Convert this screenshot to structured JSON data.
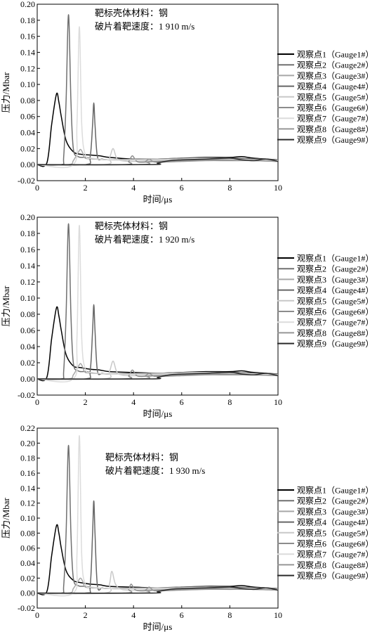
{
  "chart_data": [
    {
      "type": "line",
      "annotation": [
        "靶标壳体材料：钢",
        "破片着靶速度：1 910 m/s"
      ],
      "xlabel": "时间/μs",
      "ylabel": "压力/Mbar",
      "xlim": [
        0,
        10
      ],
      "ylim": [
        -0.02,
        0.2
      ],
      "xticks": [
        0,
        2,
        4,
        6,
        8,
        10
      ],
      "yticks": [
        -0.02,
        0.0,
        0.02,
        0.04,
        0.06,
        0.08,
        0.1,
        0.12,
        0.14,
        0.16,
        0.18,
        0.2
      ],
      "legend_position": "right",
      "series": [
        {
          "name": "观察点1（Gauge1#）",
          "color": "#000000",
          "x": [
            0,
            0.4,
            0.6,
            0.8,
            0.9,
            1.0,
            1.2,
            1.5,
            1.8,
            2.2,
            2.6,
            3,
            4,
            5,
            6,
            7,
            8,
            8.5,
            9,
            10
          ],
          "values": [
            0,
            0.002,
            0.05,
            0.088,
            0.078,
            0.06,
            0.03,
            0.016,
            0.013,
            0.012,
            0.011,
            0.009,
            0.007,
            0.007,
            0.008,
            0.009,
            0.009,
            0.01,
            0.008,
            0.006
          ]
        },
        {
          "name": "观察点2（Gauge2#）",
          "color": "#707070",
          "x": [
            0,
            1.0,
            1.1,
            1.2,
            1.3,
            1.4,
            1.5,
            1.7,
            2.0,
            2.5,
            3,
            4,
            5,
            6,
            7,
            8,
            9,
            10
          ],
          "values": [
            0,
            0,
            0.01,
            0.08,
            0.187,
            0.08,
            0.02,
            0.01,
            0.009,
            0.007,
            0.006,
            0.007,
            0.007,
            0.008,
            0.008,
            0.008,
            0.007,
            0.006
          ]
        },
        {
          "name": "观察点3（Gauge3#）",
          "color": "#a8a8a8",
          "x": [
            0,
            1.3,
            1.5,
            1.7,
            1.8,
            1.9,
            2.0,
            2.4,
            3,
            4,
            5,
            6,
            7,
            8,
            9,
            10
          ],
          "values": [
            0,
            0,
            0.005,
            0.015,
            0.019,
            0.014,
            0.008,
            0.007,
            0.006,
            0.006,
            0.007,
            0.007,
            0.008,
            0.008,
            0.007,
            0.006
          ]
        },
        {
          "name": "观察点4（Gauge4#）",
          "color": "#666666",
          "x": [
            0,
            2.0,
            2.2,
            2.3,
            2.35,
            2.4,
            2.5,
            2.7,
            3,
            4,
            5,
            6,
            7,
            8,
            9,
            10
          ],
          "values": [
            0,
            0,
            0.01,
            0.05,
            0.077,
            0.05,
            0.01,
            0.007,
            0.006,
            0.006,
            0.006,
            0.007,
            0.008,
            0.008,
            0.007,
            0.006
          ]
        },
        {
          "name": "观察点5（Gauge5#）",
          "color": "#c8c8c8",
          "x": [
            0,
            2.8,
            3.0,
            3.15,
            3.3,
            3.5,
            4,
            5,
            6,
            7,
            8,
            9,
            10
          ],
          "values": [
            0,
            0,
            0.008,
            0.02,
            0.008,
            0.005,
            0.004,
            0.005,
            0.006,
            0.007,
            0.007,
            0.006,
            0.005
          ]
        },
        {
          "name": "观察点6（Gauge6#）",
          "color": "#8c8c8c",
          "x": [
            0,
            3.6,
            3.8,
            3.95,
            4.1,
            4.3,
            5,
            6,
            7,
            8,
            9,
            10
          ],
          "values": [
            0,
            0,
            0.004,
            0.011,
            0.005,
            0.003,
            0.004,
            0.005,
            0.006,
            0.006,
            0.005,
            0.004
          ]
        },
        {
          "name": "观察点7（Gauge7#）",
          "color": "#dcdcdc",
          "x": [
            0,
            1.5,
            1.65,
            1.75,
            1.85,
            2.0,
            2.3,
            3,
            4,
            5,
            6,
            7,
            8,
            9,
            10
          ],
          "values": [
            0,
            0,
            0.05,
            0.172,
            0.05,
            0.012,
            0.008,
            0.006,
            0.006,
            0.006,
            0.007,
            0.008,
            0.007,
            0.006,
            0.005
          ]
        },
        {
          "name": "观察点8（Gauge8#）",
          "color": "#969696",
          "x": [
            0,
            4.3,
            4.5,
            4.65,
            4.8,
            5,
            6,
            7,
            8,
            9,
            10
          ],
          "values": [
            0,
            0,
            0.004,
            0.007,
            0.004,
            0.003,
            0.004,
            0.005,
            0.005,
            0.005,
            0.004
          ]
        },
        {
          "name": "观察点9（Gauge9#）",
          "color": "#2a2a2a",
          "x": [
            0,
            4.7,
            5,
            5.5,
            6,
            7,
            8,
            8.5,
            9,
            9.5,
            10
          ],
          "values": [
            0,
            0,
            0.002,
            0.005,
            0.006,
            0.007,
            0.008,
            0.006,
            0.005,
            0.007,
            0.004
          ]
        }
      ]
    },
    {
      "type": "line",
      "annotation": [
        "靶标壳体材料：钢",
        "破片着靶速度：1 920 m/s"
      ],
      "xlabel": "时间/μs",
      "ylabel": "压力/Mbar",
      "xlim": [
        0,
        10
      ],
      "ylim": [
        -0.02,
        0.2
      ],
      "xticks": [
        0,
        2,
        4,
        6,
        8,
        10
      ],
      "yticks": [
        -0.02,
        0.0,
        0.02,
        0.04,
        0.06,
        0.08,
        0.1,
        0.12,
        0.14,
        0.16,
        0.18,
        0.2
      ],
      "legend_position": "right",
      "series": [
        {
          "name": "观察点1（Gauge1#）",
          "color": "#000000",
          "x": [
            0,
            0.4,
            0.6,
            0.8,
            0.9,
            1.0,
            1.2,
            1.5,
            1.8,
            2.2,
            2.6,
            3,
            4,
            5,
            6,
            7,
            8,
            8.5,
            9,
            10
          ],
          "values": [
            0,
            0.002,
            0.05,
            0.088,
            0.078,
            0.06,
            0.03,
            0.016,
            0.014,
            0.012,
            0.011,
            0.009,
            0.008,
            0.007,
            0.008,
            0.009,
            0.009,
            0.01,
            0.008,
            0.006
          ]
        },
        {
          "name": "观察点2（Gauge2#）",
          "color": "#707070",
          "x": [
            0,
            1.0,
            1.1,
            1.2,
            1.3,
            1.4,
            1.5,
            1.7,
            2.0,
            2.5,
            3,
            4,
            5,
            6,
            7,
            8,
            9,
            10
          ],
          "values": [
            0,
            0,
            0.01,
            0.08,
            0.192,
            0.08,
            0.02,
            0.01,
            0.009,
            0.007,
            0.006,
            0.007,
            0.007,
            0.008,
            0.008,
            0.008,
            0.007,
            0.006
          ]
        },
        {
          "name": "观察点3（Gauge3#）",
          "color": "#a8a8a8",
          "x": [
            0,
            1.3,
            1.5,
            1.7,
            1.8,
            1.9,
            2.0,
            2.4,
            3,
            4,
            5,
            6,
            7,
            8,
            9,
            10
          ],
          "values": [
            0,
            0,
            0.005,
            0.015,
            0.019,
            0.014,
            0.008,
            0.007,
            0.006,
            0.006,
            0.007,
            0.007,
            0.008,
            0.008,
            0.007,
            0.006
          ]
        },
        {
          "name": "观察点4（Gauge4#）",
          "color": "#666666",
          "x": [
            0,
            2.0,
            2.2,
            2.3,
            2.35,
            2.4,
            2.5,
            2.7,
            3,
            4,
            5,
            6,
            7,
            8,
            9,
            10
          ],
          "values": [
            0,
            0,
            0.01,
            0.06,
            0.092,
            0.06,
            0.01,
            0.007,
            0.006,
            0.006,
            0.006,
            0.007,
            0.008,
            0.008,
            0.007,
            0.006
          ]
        },
        {
          "name": "观察点5（Gauge5#）",
          "color": "#c8c8c8",
          "x": [
            0,
            2.8,
            3.0,
            3.15,
            3.3,
            3.5,
            4,
            5,
            6,
            7,
            8,
            9,
            10
          ],
          "values": [
            0,
            0,
            0.009,
            0.022,
            0.009,
            0.005,
            0.004,
            0.005,
            0.006,
            0.007,
            0.007,
            0.006,
            0.005
          ]
        },
        {
          "name": "观察点6（Gauge6#）",
          "color": "#8c8c8c",
          "x": [
            0,
            3.6,
            3.8,
            3.95,
            4.1,
            4.3,
            5,
            6,
            7,
            8,
            9,
            10
          ],
          "values": [
            0,
            0,
            0.004,
            0.011,
            0.005,
            0.003,
            0.004,
            0.005,
            0.006,
            0.006,
            0.005,
            0.004
          ]
        },
        {
          "name": "观察点7（Gauge7#）",
          "color": "#dcdcdc",
          "x": [
            0,
            1.5,
            1.65,
            1.75,
            1.85,
            2.0,
            2.3,
            3,
            4,
            5,
            6,
            7,
            8,
            9,
            10
          ],
          "values": [
            0,
            0,
            0.05,
            0.19,
            0.05,
            0.012,
            0.008,
            0.006,
            0.006,
            0.006,
            0.007,
            0.008,
            0.007,
            0.006,
            0.005
          ]
        },
        {
          "name": "观察点8（Gauge8#）",
          "color": "#969696",
          "x": [
            0,
            4.3,
            4.5,
            4.65,
            4.8,
            5,
            6,
            7,
            8,
            9,
            10
          ],
          "values": [
            0,
            0,
            0.004,
            0.007,
            0.004,
            0.003,
            0.004,
            0.005,
            0.005,
            0.005,
            0.004
          ]
        },
        {
          "name": "观察点9（Gauge9#）",
          "color": "#2a2a2a",
          "x": [
            0,
            4.7,
            5,
            5.5,
            6,
            7,
            8,
            8.5,
            9,
            9.5,
            10
          ],
          "values": [
            0,
            0,
            0.002,
            0.005,
            0.006,
            0.007,
            0.008,
            0.006,
            0.005,
            0.007,
            0.004
          ]
        }
      ]
    },
    {
      "type": "line",
      "annotation": [
        "靶标壳体材料：钢",
        "破片着靶速度：1 930 m/s"
      ],
      "xlabel": "时间/μs",
      "ylabel": "压力/Mbar",
      "xlim": [
        0,
        10
      ],
      "ylim": [
        -0.02,
        0.22
      ],
      "xticks": [
        0,
        2,
        4,
        6,
        8,
        10
      ],
      "yticks": [
        -0.02,
        0.0,
        0.02,
        0.04,
        0.06,
        0.08,
        0.1,
        0.12,
        0.14,
        0.16,
        0.18,
        0.2,
        0.22
      ],
      "legend_position": "right",
      "series": [
        {
          "name": "观察点1（Gauge1#）",
          "color": "#000000",
          "x": [
            0,
            0.4,
            0.6,
            0.8,
            0.9,
            1.0,
            1.2,
            1.5,
            1.8,
            2.2,
            2.6,
            3,
            4,
            5,
            6,
            7,
            8,
            8.5,
            9,
            10
          ],
          "values": [
            0,
            0.002,
            0.05,
            0.09,
            0.08,
            0.06,
            0.03,
            0.017,
            0.014,
            0.012,
            0.011,
            0.009,
            0.008,
            0.007,
            0.008,
            0.009,
            0.009,
            0.01,
            0.008,
            0.006
          ]
        },
        {
          "name": "观察点2（Gauge2#）",
          "color": "#707070",
          "x": [
            0,
            1.0,
            1.1,
            1.2,
            1.3,
            1.4,
            1.5,
            1.7,
            2.0,
            2.5,
            3,
            4,
            5,
            6,
            7,
            8,
            9,
            10
          ],
          "values": [
            0,
            0,
            0.01,
            0.08,
            0.197,
            0.08,
            0.02,
            0.01,
            0.009,
            0.007,
            0.006,
            0.007,
            0.007,
            0.008,
            0.008,
            0.008,
            0.007,
            0.006
          ]
        },
        {
          "name": "观察点3（Gauge3#）",
          "color": "#a8a8a8",
          "x": [
            0,
            1.3,
            1.5,
            1.7,
            1.8,
            1.9,
            2.0,
            2.4,
            3,
            4,
            5,
            6,
            7,
            8,
            9,
            10
          ],
          "values": [
            0,
            0,
            0.006,
            0.016,
            0.02,
            0.015,
            0.008,
            0.007,
            0.006,
            0.006,
            0.007,
            0.007,
            0.008,
            0.008,
            0.007,
            0.006
          ]
        },
        {
          "name": "观察点4（Gauge4#）",
          "color": "#666666",
          "x": [
            0,
            2.0,
            2.2,
            2.3,
            2.35,
            2.4,
            2.5,
            2.7,
            3,
            4,
            5,
            6,
            7,
            8,
            9,
            10
          ],
          "values": [
            0,
            0,
            0.01,
            0.08,
            0.123,
            0.08,
            0.01,
            0.007,
            0.006,
            0.006,
            0.006,
            0.007,
            0.008,
            0.008,
            0.007,
            0.006
          ]
        },
        {
          "name": "观察点5（Gauge5#）",
          "color": "#c8c8c8",
          "x": [
            0,
            2.8,
            3.0,
            3.1,
            3.25,
            3.5,
            4,
            5,
            6,
            7,
            8,
            9,
            10
          ],
          "values": [
            0,
            0,
            0.012,
            0.029,
            0.012,
            0.005,
            0.004,
            0.005,
            0.006,
            0.007,
            0.007,
            0.006,
            0.005
          ]
        },
        {
          "name": "观察点6（Gauge6#）",
          "color": "#8c8c8c",
          "x": [
            0,
            3.6,
            3.8,
            3.9,
            4.05,
            4.3,
            5,
            6,
            7,
            8,
            9,
            10
          ],
          "values": [
            0,
            0,
            0.005,
            0.012,
            0.005,
            0.003,
            0.004,
            0.005,
            0.006,
            0.006,
            0.005,
            0.004
          ]
        },
        {
          "name": "观察点7（Gauge7#）",
          "color": "#dcdcdc",
          "x": [
            0,
            1.5,
            1.65,
            1.75,
            1.85,
            2.0,
            2.3,
            3,
            4,
            5,
            6,
            7,
            8,
            9,
            10
          ],
          "values": [
            0,
            0,
            0.05,
            0.21,
            0.05,
            0.012,
            0.008,
            0.006,
            0.006,
            0.006,
            0.007,
            0.008,
            0.007,
            0.006,
            0.005
          ]
        },
        {
          "name": "观察点8（Gauge8#）",
          "color": "#969696",
          "x": [
            0,
            4.3,
            4.5,
            4.65,
            4.8,
            5,
            6,
            7,
            8,
            9,
            10
          ],
          "values": [
            0,
            0,
            0.004,
            0.008,
            0.004,
            0.003,
            0.004,
            0.005,
            0.005,
            0.005,
            0.004
          ]
        },
        {
          "name": "观察点9（Gauge9#）",
          "color": "#2a2a2a",
          "x": [
            0,
            4.7,
            5,
            5.5,
            6,
            7,
            8,
            8.5,
            9,
            9.5,
            10
          ],
          "values": [
            0,
            0,
            0.002,
            0.005,
            0.006,
            0.007,
            0.008,
            0.006,
            0.005,
            0.007,
            0.004
          ]
        }
      ]
    }
  ]
}
